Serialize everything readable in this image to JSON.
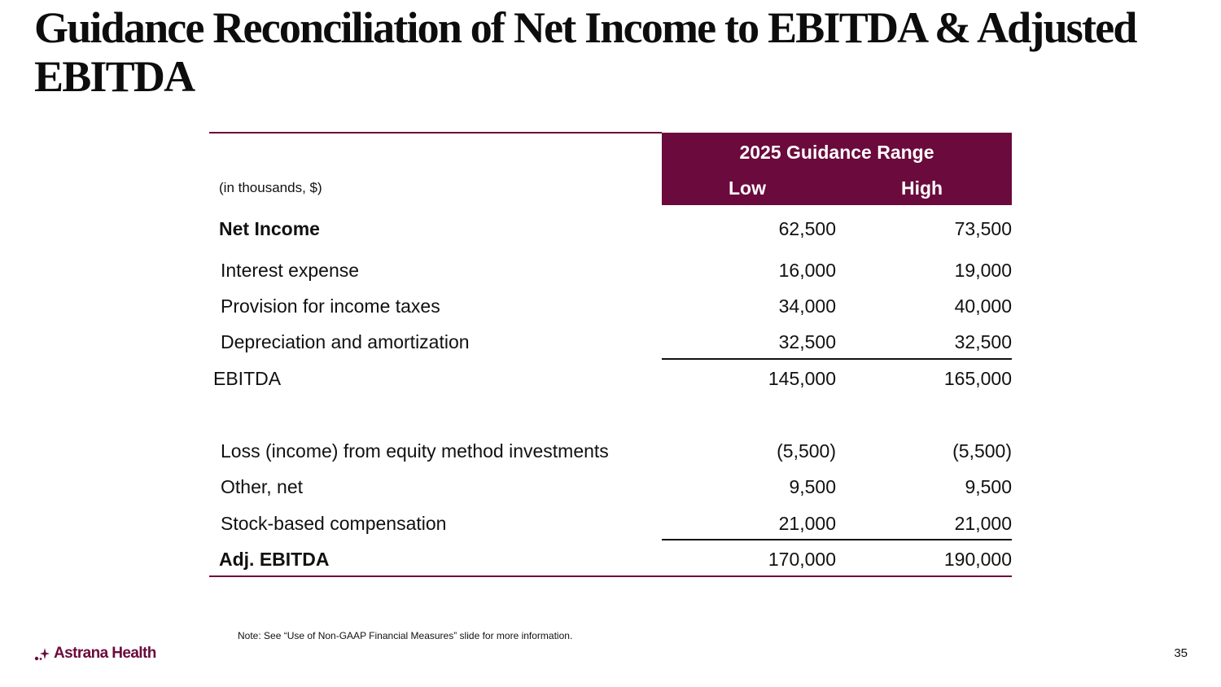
{
  "title": "Guidance Reconciliation of Net Income to EBITDA & Adjusted EBITDA",
  "table": {
    "units_label": "(in thousands, $)",
    "header": {
      "range_label": "2025 Guidance Range",
      "low_label": "Low",
      "high_label": "High"
    },
    "rows": [
      {
        "label": "Net Income",
        "low": "62,500",
        "high": "73,500",
        "style": "bold"
      },
      {
        "label": "Interest expense",
        "low": "16,000",
        "high": "19,000",
        "style": "item"
      },
      {
        "label": "Provision for income taxes",
        "low": "34,000",
        "high": "40,000",
        "style": "item"
      },
      {
        "label": "Depreciation and amortization",
        "low": "32,500",
        "high": "32,500",
        "style": "item"
      },
      {
        "label": "EBITDA",
        "low": "145,000",
        "high": "165,000",
        "style": "subtotal"
      },
      {
        "label": "Loss (income) from equity method investments",
        "low": "(5,500)",
        "high": "(5,500)",
        "style": "item"
      },
      {
        "label": "Other, net",
        "low": "9,500",
        "high": "9,500",
        "style": "item"
      },
      {
        "label": "Stock-based compensation",
        "low": "21,000",
        "high": "21,000",
        "style": "item"
      },
      {
        "label": "Adj. EBITDA",
        "low": "170,000",
        "high": "190,000",
        "style": "bold"
      }
    ]
  },
  "note": "Note: See “Use of Non-GAAP Financial Measures” slide for more information.",
  "footer": {
    "logo_text": "Astrana Health",
    "logo_icon": "sparkle-dots-icon",
    "page_number": "35"
  },
  "colors": {
    "brand": "#6b0a3c",
    "text": "#111111",
    "background": "#ffffff"
  }
}
